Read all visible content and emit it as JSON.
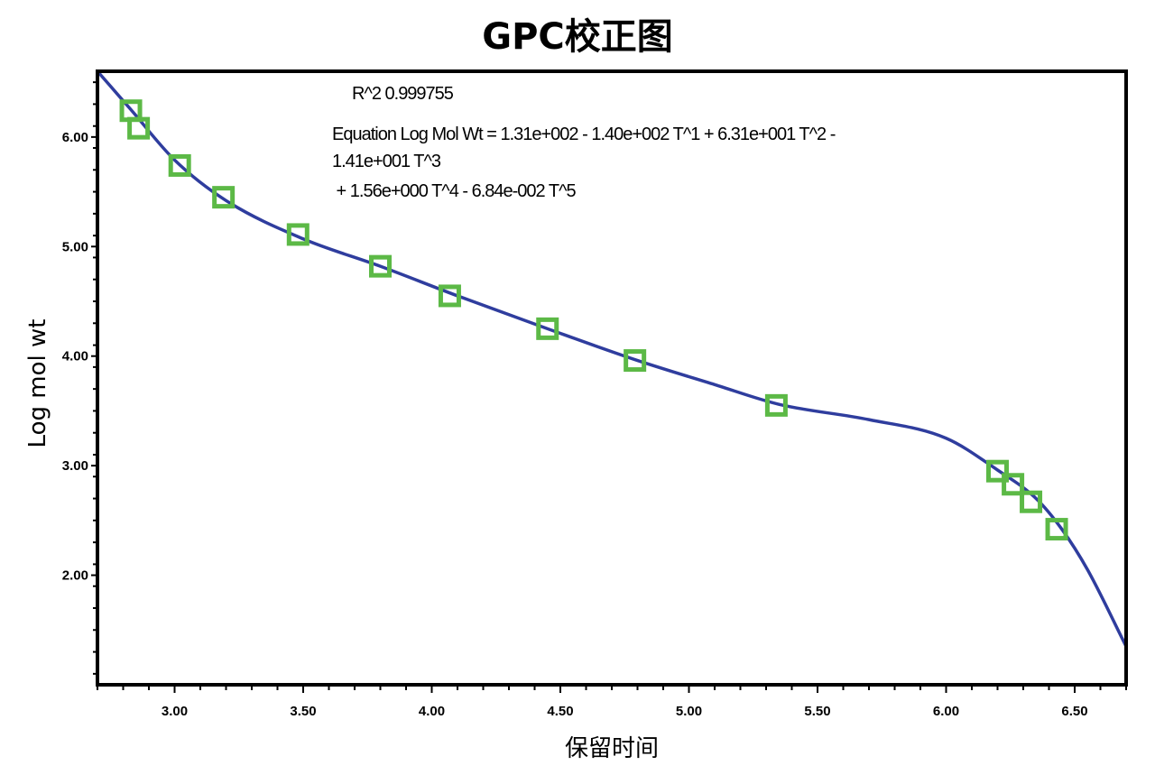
{
  "chart_data": {
    "type": "scatter",
    "title": "GPC校正图",
    "xlabel": "保留时间",
    "ylabel": "Log mol wt",
    "xlim": [
      2.7,
      6.7
    ],
    "ylim": [
      1.0,
      6.6
    ],
    "x_ticks": [
      "3.00",
      "3.50",
      "4.00",
      "4.50",
      "5.00",
      "5.50",
      "6.00",
      "6.50"
    ],
    "y_ticks": [
      "2.00",
      "3.00",
      "4.00",
      "5.00",
      "6.00"
    ],
    "grid": false,
    "annotations": {
      "r2": "R^2 0.999755",
      "equation_lines": [
        "Equation Log Mol Wt = 1.31e+002 - 1.40e+002 T^1 + 6.31e+001 T^2 -",
        "1.41e+001 T^3",
        " + 1.56e+000 T^4 - 6.84e-002 T^5"
      ]
    },
    "fit_curve": {
      "name": "",
      "color": "#2f3d9e",
      "coefficients": [
        131,
        -140,
        63.1,
        -14.1,
        1.56,
        -0.0684
      ],
      "domain": [
        2.7,
        6.7
      ],
      "points": [
        {
          "x": 2.7,
          "y": 6.6
        },
        {
          "x": 2.83,
          "y": 6.25
        },
        {
          "x": 3.0,
          "y": 5.79
        },
        {
          "x": 3.2,
          "y": 5.42
        },
        {
          "x": 3.5,
          "y": 5.07
        },
        {
          "x": 3.8,
          "y": 4.82
        },
        {
          "x": 4.1,
          "y": 4.55
        },
        {
          "x": 4.45,
          "y": 4.25
        },
        {
          "x": 4.8,
          "y": 3.96
        },
        {
          "x": 5.1,
          "y": 3.74
        },
        {
          "x": 5.35,
          "y": 3.56
        },
        {
          "x": 5.7,
          "y": 3.42
        },
        {
          "x": 6.0,
          "y": 3.25
        },
        {
          "x": 6.2,
          "y": 2.96
        },
        {
          "x": 6.35,
          "y": 2.7
        },
        {
          "x": 6.45,
          "y": 2.42
        },
        {
          "x": 6.55,
          "y": 2.05
        },
        {
          "x": 6.7,
          "y": 1.35
        }
      ]
    },
    "series": [
      {
        "name": "",
        "color": "#5cb946",
        "marker": "square",
        "points": [
          {
            "x": 2.83,
            "y": 6.24
          },
          {
            "x": 2.86,
            "y": 6.08
          },
          {
            "x": 3.02,
            "y": 5.74
          },
          {
            "x": 3.19,
            "y": 5.45
          },
          {
            "x": 3.48,
            "y": 5.11
          },
          {
            "x": 3.8,
            "y": 4.82
          },
          {
            "x": 4.07,
            "y": 4.55
          },
          {
            "x": 4.45,
            "y": 4.25
          },
          {
            "x": 4.79,
            "y": 3.96
          },
          {
            "x": 5.34,
            "y": 3.55
          },
          {
            "x": 6.2,
            "y": 2.95
          },
          {
            "x": 6.26,
            "y": 2.83
          },
          {
            "x": 6.33,
            "y": 2.67
          },
          {
            "x": 6.43,
            "y": 2.42
          }
        ]
      }
    ]
  }
}
